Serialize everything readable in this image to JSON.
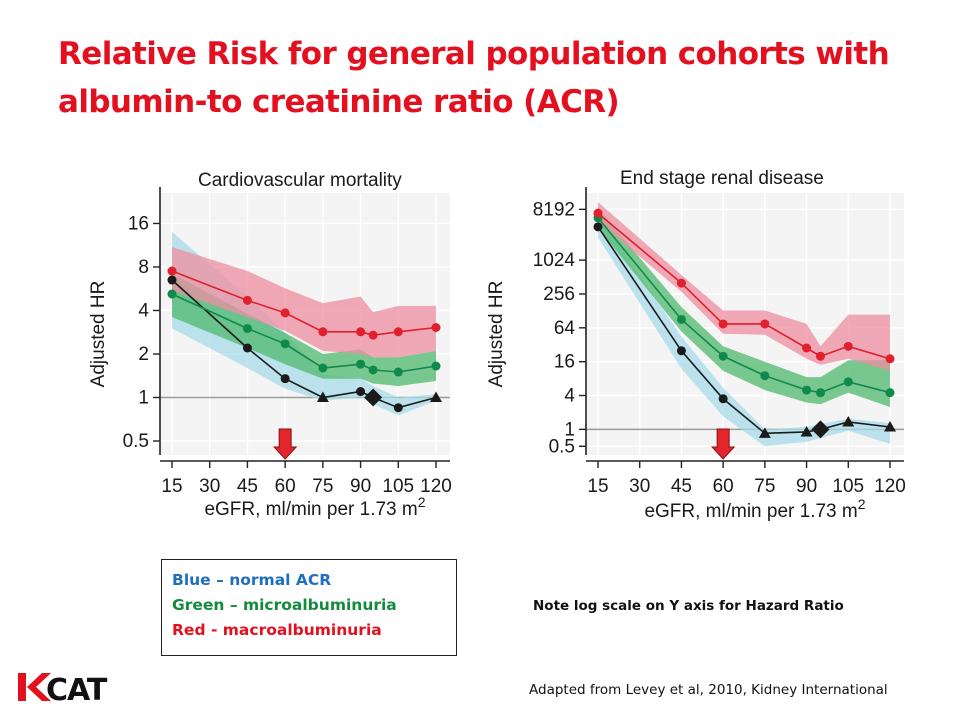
{
  "title": "Relative Risk for general population cohorts with albumin-to creatinine ratio (ACR)",
  "colors": {
    "title": "#e3101f",
    "normal": "#1a1a1a",
    "normal_band": "#a8dcea",
    "micro": "#0f8a4a",
    "micro_band": "#4fb86e",
    "macro": "#e0202c",
    "macro_band": "#ef8ea0",
    "arrow": "#e3262c",
    "legend_blue": "#1f6fbd",
    "legend_green": "#138a3c",
    "legend_red": "#e3101f"
  },
  "legend": {
    "blue": "Blue – normal ACR",
    "green": "Green – microalbuminuria",
    "red": "Red - macroalbuminuria"
  },
  "note": "Note log scale on Y axis for Hazard Ratio",
  "source": "Adapted from Levey et al, 2010, Kidney International",
  "logo": {
    "text": "KCAT"
  },
  "chart_data": [
    {
      "type": "line",
      "title": "Cardiovascular mortality",
      "xlabel": "eGFR, ml/min per 1.73 m",
      "xlabel_sup": "2",
      "ylabel": "Adjusted HR",
      "y_scale": "log2",
      "x_ticks": [
        15,
        30,
        45,
        60,
        75,
        90,
        105,
        120
      ],
      "x_tick_labels": [
        "15",
        "30",
        "45",
        "60",
        "75",
        "90",
        "105",
        "120"
      ],
      "y_ticks": [
        0.5,
        1,
        2,
        4,
        8,
        16
      ],
      "y_tick_labels": [
        "0.5",
        "1",
        "2",
        "4",
        "8",
        "16"
      ],
      "xlim": [
        15,
        120
      ],
      "ylim": [
        0.4,
        26
      ],
      "reference_line": 1,
      "arrow_at_x": 60,
      "reference_point": {
        "x": 95,
        "y": 1.0,
        "marker": "diamond"
      },
      "series": [
        {
          "key": "normal",
          "x": [
            15,
            45,
            60,
            75,
            90,
            95,
            105,
            120
          ],
          "y": [
            6.5,
            2.2,
            1.35,
            1.0,
            1.1,
            1.0,
            0.85,
            1.0
          ],
          "marker": [
            "circle",
            "circle",
            "circle",
            "triangle",
            "circle",
            null,
            "circle",
            "triangle"
          ],
          "band_low": [
            3.0,
            1.6,
            1.15,
            0.95,
            1.0,
            0.9,
            0.75,
            0.95
          ],
          "band_high": [
            14.0,
            5.0,
            2.8,
            1.45,
            1.35,
            1.2,
            1.0,
            1.05
          ]
        },
        {
          "key": "micro",
          "x": [
            15,
            45,
            60,
            75,
            90,
            95,
            105,
            120
          ],
          "y": [
            5.2,
            3.0,
            2.35,
            1.6,
            1.7,
            1.55,
            1.5,
            1.65
          ],
          "band_low": [
            3.6,
            2.2,
            1.7,
            1.35,
            1.35,
            1.25,
            1.2,
            1.3
          ],
          "band_high": [
            7.2,
            3.8,
            2.8,
            2.0,
            2.15,
            1.9,
            1.9,
            2.1
          ]
        },
        {
          "key": "macro",
          "x": [
            15,
            45,
            60,
            75,
            90,
            95,
            105,
            120
          ],
          "y": [
            7.5,
            4.7,
            3.85,
            2.85,
            2.85,
            2.7,
            2.85,
            3.05
          ],
          "band_low": [
            5.5,
            3.6,
            2.9,
            2.1,
            2.0,
            1.9,
            1.9,
            2.1
          ],
          "band_high": [
            11.0,
            7.5,
            5.7,
            4.5,
            5.0,
            3.9,
            4.3,
            4.3
          ]
        }
      ]
    },
    {
      "type": "line",
      "title": "End stage renal disease",
      "xlabel": "eGFR, ml/min per 1.73 m",
      "xlabel_sup": "2",
      "ylabel": "Adjusted HR",
      "y_scale": "log2",
      "x_ticks": [
        15,
        30,
        45,
        60,
        75,
        90,
        105,
        120
      ],
      "x_tick_labels": [
        "15",
        "30",
        "45",
        "60",
        "75",
        "90",
        "105",
        "120"
      ],
      "y_ticks": [
        0.5,
        1,
        4,
        16,
        64,
        256,
        1024,
        8192
      ],
      "y_tick_labels": [
        "0.5",
        "1",
        "4",
        "16",
        "64",
        "256",
        "1024",
        "8192"
      ],
      "xlim": [
        15,
        120
      ],
      "ylim": [
        0.35,
        16000
      ],
      "reference_line": 1,
      "arrow_at_x": 60,
      "reference_point": {
        "x": 95,
        "y": 1.0,
        "marker": "diamond"
      },
      "series": [
        {
          "key": "normal",
          "x": [
            15,
            45,
            60,
            75,
            90,
            95,
            105,
            120
          ],
          "y": [
            4000,
            25,
            3.5,
            0.85,
            0.9,
            1.0,
            1.35,
            1.1
          ],
          "marker": [
            "circle",
            "circle",
            "circle",
            "triangle",
            "triangle",
            null,
            "triangle",
            "triangle"
          ],
          "band_low": [
            2600,
            12,
            1.7,
            0.5,
            0.6,
            0.7,
            0.95,
            0.55
          ],
          "band_high": [
            6500,
            45,
            5.5,
            1.0,
            1.1,
            1.25,
            1.55,
            1.3
          ]
        },
        {
          "key": "micro",
          "x": [
            15,
            45,
            60,
            75,
            90,
            95,
            105,
            120
          ],
          "y": [
            5800,
            90,
            20,
            9,
            5,
            4.5,
            7,
            4.5
          ],
          "band_low": [
            3800,
            55,
            11,
            5,
            3,
            2.8,
            4.5,
            2.5
          ],
          "band_high": [
            8500,
            150,
            30,
            16,
            8.5,
            8.5,
            17,
            17
          ]
        },
        {
          "key": "macro",
          "x": [
            15,
            45,
            60,
            75,
            90,
            95,
            105,
            120
          ],
          "y": [
            7000,
            400,
            75,
            75,
            28,
            20,
            30,
            18
          ],
          "band_low": [
            5000,
            280,
            50,
            48,
            18,
            14,
            18,
            11
          ],
          "band_high": [
            11000,
            560,
            130,
            130,
            75,
            30,
            110,
            110
          ]
        }
      ]
    }
  ]
}
